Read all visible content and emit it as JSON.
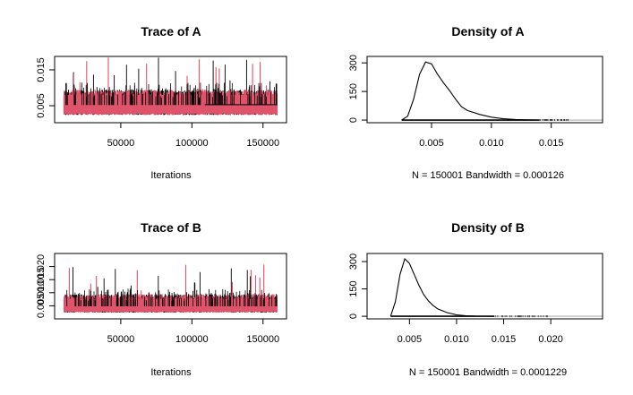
{
  "chart_data": [
    {
      "type": "line",
      "title": "Trace of A",
      "xlabel": "Iterations",
      "ylabel": "",
      "x_ticks": [
        50000,
        100000,
        150000
      ],
      "x_tick_labels": [
        "50000",
        "100000",
        "150000"
      ],
      "y_ticks": [
        0.005,
        0.015
      ],
      "y_tick_labels": [
        "0.005",
        "0.015"
      ],
      "xlim": [
        10000,
        160000
      ],
      "ylim": [
        0.001,
        0.018
      ],
      "colors": [
        "#000000",
        "#DF536B"
      ],
      "trace": {
        "center": 0.0052,
        "low": 0.0024,
        "high": 0.0095,
        "spike_max": 0.0185
      }
    },
    {
      "type": "line",
      "title": "Density of A",
      "xlabel": "N = 150001   Bandwidth = 0.000126",
      "ylabel": "",
      "x_ticks": [
        0.005,
        0.01,
        0.015
      ],
      "x_tick_labels": [
        "0.005",
        "0.010",
        "0.015"
      ],
      "y_ticks": [
        0,
        150,
        300
      ],
      "y_tick_labels": [
        "0",
        "150",
        "300"
      ],
      "xlim": [
        0.0004,
        0.0185
      ],
      "ylim": [
        0,
        320
      ],
      "colors": [
        "#000000"
      ],
      "x": [
        0.0025,
        0.003,
        0.0035,
        0.004,
        0.0045,
        0.005,
        0.0055,
        0.006,
        0.0065,
        0.007,
        0.0075,
        0.008,
        0.009,
        0.01,
        0.011,
        0.012,
        0.013,
        0.014
      ],
      "y": [
        0,
        20,
        110,
        240,
        305,
        295,
        240,
        195,
        155,
        110,
        70,
        50,
        30,
        15,
        7,
        3,
        1,
        0
      ]
    },
    {
      "type": "line",
      "title": "Trace of B",
      "xlabel": "Iterations",
      "ylabel": "",
      "x_ticks": [
        50000,
        100000,
        150000
      ],
      "x_tick_labels": [
        "50000",
        "100000",
        "150000"
      ],
      "y_ticks": [
        0.005,
        0.01,
        0.015,
        0.02
      ],
      "y_tick_labels": [
        "0.005",
        "0.010",
        "0.015",
        "0.020"
      ],
      "xlim": [
        10000,
        160000
      ],
      "ylim": [
        0.001,
        0.024
      ],
      "colors": [
        "#000000",
        "#DF536B"
      ],
      "trace": {
        "center": 0.0048,
        "low": 0.0024,
        "high": 0.0095,
        "spike_max": 0.0215
      }
    },
    {
      "type": "line",
      "title": "Density of B",
      "xlabel": "N = 150001   Bandwidth = 0.0001229",
      "ylabel": "",
      "x_ticks": [
        0.005,
        0.01,
        0.015,
        0.02
      ],
      "x_tick_labels": [
        "0.005",
        "0.010",
        "0.015",
        "0.020"
      ],
      "y_ticks": [
        0,
        150,
        300
      ],
      "y_tick_labels": [
        "0",
        "150",
        "300"
      ],
      "xlim": [
        0.0015,
        0.0245
      ],
      "ylim": [
        0,
        330
      ],
      "colors": [
        "#000000"
      ],
      "x": [
        0.003,
        0.0035,
        0.004,
        0.0045,
        0.005,
        0.0055,
        0.006,
        0.0065,
        0.007,
        0.0075,
        0.008,
        0.009,
        0.01,
        0.011,
        0.012,
        0.013,
        0.014
      ],
      "y": [
        0,
        80,
        230,
        315,
        290,
        230,
        170,
        120,
        85,
        60,
        40,
        20,
        8,
        3,
        1,
        0.5,
        0
      ]
    }
  ]
}
